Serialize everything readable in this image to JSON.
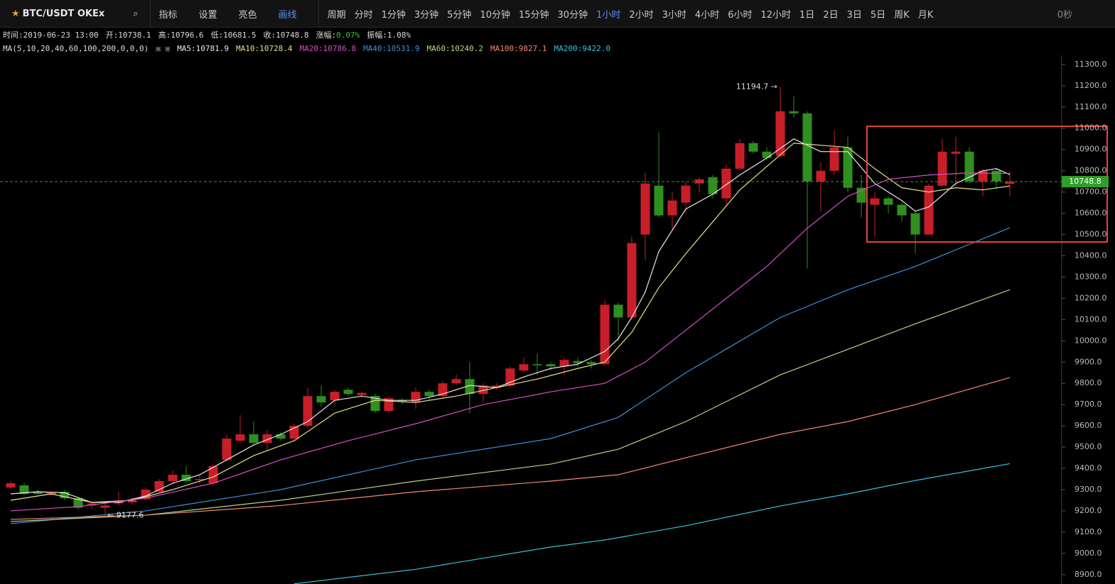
{
  "toolbar": {
    "symbol": "BTC/USDT OKEx",
    "tools": [
      "指标",
      "设置",
      "亮色",
      "画线"
    ],
    "period_label": "周期",
    "periods": [
      "分时",
      "1分钟",
      "3分钟",
      "5分钟",
      "10分钟",
      "15分钟",
      "30分钟",
      "1小时",
      "2小时",
      "3小时",
      "4小时",
      "6小时",
      "12小时",
      "1日",
      "2日",
      "3日",
      "5日",
      "周K",
      "月K"
    ],
    "active_period": 7,
    "active_color": "#5b8ff9",
    "timer": "0秒"
  },
  "info": {
    "fields": [
      "时间:2019-06-23 13:00",
      "开:10738.1",
      "高:10796.6",
      "低:10681.5",
      "收:10748.8"
    ],
    "change_label": "涨幅:",
    "change": "0.07%",
    "change_color": "#3fbf3f",
    "amplitude": "振幅:1.08%",
    "ma_params": "MA(5,10,20,40,60,100,200,0,0,0)"
  },
  "chart_data": {
    "type": "candlestick",
    "up_color": "#c81e2a",
    "down_color": "#2f8f1f",
    "open": [
      9310,
      9320,
      9290,
      9275,
      9290,
      9260,
      9225,
      9215,
      9235,
      9240,
      9255,
      9290,
      9340,
      9370,
      9345,
      9330,
      9440,
      9530,
      9560,
      9520,
      9560,
      9540,
      9600,
      9740,
      9720,
      9770,
      9745,
      9740,
      9670,
      9720,
      9710,
      9760,
      9740,
      9800,
      9820,
      9750,
      9780,
      9790,
      9860,
      9890,
      9890,
      9880,
      9905,
      9900,
      9890,
      10170,
      10110,
      10500,
      10730,
      10590,
      10650,
      10740,
      10770,
      10670,
      10810,
      10930,
      10890,
      10870,
      11080,
      11070,
      10750,
      10800,
      10910,
      10720,
      10640,
      10670,
      10640,
      10600,
      10500,
      10730,
      10880,
      10890,
      10750,
      10800,
      10738.1
    ],
    "high": [
      9340,
      9330,
      9300,
      9290,
      9300,
      9265,
      9240,
      9235,
      9290,
      9260,
      9310,
      9350,
      9390,
      9410,
      9370,
      9420,
      9560,
      9650,
      9620,
      9580,
      9570,
      9610,
      9780,
      9790,
      9770,
      9780,
      9760,
      9750,
      9740,
      9730,
      9780,
      9770,
      9810,
      9840,
      9900,
      9800,
      9800,
      9880,
      9920,
      9940,
      9900,
      9920,
      9920,
      9910,
      10190,
      10180,
      10490,
      10790,
      10980,
      10700,
      10750,
      10770,
      10780,
      10830,
      10950,
      10940,
      10910,
      11194.7,
      11150,
      11080,
      10840,
      10990,
      10960,
      10780,
      10700,
      10680,
      10650,
      10610,
      10740,
      10950,
      10960,
      10910,
      10810,
      10810,
      10796.6
    ],
    "low": [
      9300,
      9275,
      9275,
      9270,
      9250,
      9205,
      9210,
      9177.6,
      9225,
      9230,
      9250,
      9285,
      9330,
      9330,
      9330,
      9320,
      9430,
      9520,
      9510,
      9480,
      9530,
      9530,
      9590,
      9690,
      9700,
      9740,
      9730,
      9660,
      9660,
      9700,
      9680,
      9720,
      9730,
      9790,
      9660,
      9710,
      9770,
      9780,
      9850,
      9840,
      9860,
      9840,
      9880,
      9870,
      9880,
      10000,
      10100,
      10380,
      10580,
      10520,
      10600,
      10700,
      10670,
      10640,
      10800,
      10880,
      10850,
      10860,
      11050,
      10340,
      10610,
      10780,
      10700,
      10580,
      10490,
      10600,
      10560,
      10410,
      10500,
      10720,
      10730,
      10740,
      10680,
      10720,
      10681.5
    ],
    "close": [
      9330,
      9280,
      9280,
      9285,
      9260,
      9215,
      9235,
      9225,
      9245,
      9250,
      9300,
      9340,
      9370,
      9340,
      9350,
      9410,
      9540,
      9560,
      9520,
      9560,
      9540,
      9600,
      9740,
      9710,
      9760,
      9750,
      9755,
      9670,
      9730,
      9715,
      9760,
      9740,
      9800,
      9820,
      9750,
      9790,
      9790,
      9870,
      9890,
      9885,
      9880,
      9910,
      9895,
      9890,
      10170,
      10110,
      10460,
      10740,
      10590,
      10660,
      10730,
      10760,
      10690,
      10810,
      10930,
      10890,
      10860,
      11080,
      11070,
      10750,
      10800,
      10910,
      10720,
      10650,
      10670,
      10640,
      10590,
      10500,
      10730,
      10890,
      10890,
      10750,
      10800,
      10750,
      10748.8
    ],
    "ma_series": [
      {
        "legend_label": "MA5:10781.9",
        "color": "#e8e8e8",
        "x": [
          0,
          2,
          4,
          6,
          8,
          10,
          12,
          14,
          16,
          18,
          20,
          22,
          24,
          26,
          28,
          30,
          32,
          34,
          36,
          38,
          40,
          42,
          44,
          45,
          46,
          47,
          48,
          50,
          52,
          54,
          56,
          58,
          60,
          62,
          64,
          66,
          67,
          68,
          70,
          72,
          73,
          74
        ],
        "values": [
          9280,
          9290,
          9285,
          9240,
          9240,
          9270,
          9330,
          9370,
          9440,
          9510,
          9560,
          9620,
          9720,
          9740,
          9720,
          9720,
          9750,
          9790,
          9780,
          9830,
          9870,
          9890,
          9950,
          10010,
          10110,
          10230,
          10420,
          10620,
          10690,
          10780,
          10860,
          10950,
          10890,
          10890,
          10740,
          10660,
          10610,
          10630,
          10740,
          10800,
          10810,
          10781.9
        ]
      },
      {
        "legend_label": "MA10:10728.4",
        "color": "#e6e08a",
        "x": [
          0,
          3,
          6,
          9,
          12,
          15,
          18,
          21,
          24,
          27,
          30,
          33,
          36,
          39,
          42,
          44,
          46,
          48,
          50,
          52,
          54,
          56,
          58,
          60,
          62,
          64,
          66,
          68,
          70,
          72,
          74
        ],
        "values": [
          9250,
          9280,
          9240,
          9250,
          9300,
          9360,
          9460,
          9530,
          9660,
          9720,
          9710,
          9740,
          9780,
          9820,
          9870,
          9900,
          10040,
          10250,
          10410,
          10560,
          10710,
          10820,
          10930,
          10920,
          10910,
          10810,
          10720,
          10700,
          10720,
          10710,
          10728.4
        ]
      },
      {
        "legend_label": "MA20:10786.8",
        "color": "#d64fc8",
        "x": [
          0,
          5,
          10,
          15,
          20,
          25,
          30,
          35,
          40,
          44,
          47,
          50,
          53,
          56,
          59,
          62,
          65,
          68,
          71,
          74
        ],
        "values": [
          9200,
          9220,
          9260,
          9330,
          9440,
          9530,
          9610,
          9700,
          9760,
          9800,
          9900,
          10050,
          10200,
          10350,
          10530,
          10680,
          10760,
          10780,
          10790,
          10786.8
        ]
      },
      {
        "legend_label": "MA40:10531.9",
        "color": "#3f8fd8",
        "x": [
          0,
          10,
          20,
          30,
          40,
          45,
          50,
          57,
          62,
          67,
          74
        ],
        "values": [
          9140,
          9200,
          9300,
          9440,
          9540,
          9640,
          9850,
          10110,
          10240,
          10350,
          10531.9
        ]
      },
      {
        "legend_label": "MA60:10240.2",
        "color": "#b8d68a",
        "x": [
          0,
          10,
          20,
          30,
          40,
          45,
          50,
          57,
          62,
          67,
          74
        ],
        "values": [
          9150,
          9180,
          9250,
          9340,
          9420,
          9490,
          9620,
          9840,
          9960,
          10080,
          10240.2
        ]
      },
      {
        "legend_label": "MA100:9827.1",
        "color": "#f08a70",
        "x": [
          0,
          10,
          20,
          30,
          40,
          45,
          50,
          57,
          62,
          67,
          74
        ],
        "values": [
          9160,
          9180,
          9225,
          9290,
          9340,
          9370,
          9450,
          9560,
          9620,
          9700,
          9827.1
        ]
      },
      {
        "legend_label": "MA200:9422.0",
        "color": "#35c3d8",
        "x": [
          21,
          30,
          40,
          44,
          50,
          57,
          62,
          67,
          74
        ],
        "values": [
          8857,
          8925,
          9030,
          9063,
          9130,
          9223,
          9280,
          9343,
          9422
        ]
      }
    ],
    "ylim": [
      8856,
      11343
    ],
    "yticks": [
      {
        "value": 8900,
        "label": "8900.0"
      },
      {
        "value": 9000,
        "label": "9000.0"
      },
      {
        "value": 9100,
        "label": "9100.0"
      },
      {
        "value": 9200,
        "label": "9200.0"
      },
      {
        "value": 9300,
        "label": "9300.0"
      },
      {
        "value": 9400,
        "label": "9400.0"
      },
      {
        "value": 9500,
        "label": "9500.0"
      },
      {
        "value": 9600,
        "label": "9600.0"
      },
      {
        "value": 9700,
        "label": "9700.0"
      },
      {
        "value": 9800,
        "label": "9800.0"
      },
      {
        "value": 9900,
        "label": "9900.0"
      },
      {
        "value": 10000,
        "label": "10000.0"
      },
      {
        "value": 10100,
        "label": "10100.0"
      },
      {
        "value": 10200,
        "label": "10200.0"
      },
      {
        "value": 10300,
        "label": "10300.0"
      },
      {
        "value": 10400,
        "label": "10400.0"
      },
      {
        "value": 10500,
        "label": "10500.0"
      },
      {
        "value": 10600,
        "label": "10600.0"
      },
      {
        "value": 10700,
        "label": "10700.0"
      },
      {
        "value": 10800,
        "label": "10800.0"
      },
      {
        "value": 10900,
        "label": "10900.0"
      },
      {
        "value": 11000,
        "label": "11000.0"
      },
      {
        "value": 11100,
        "label": "11100.0"
      },
      {
        "value": 11200,
        "label": "11200.0"
      },
      {
        "value": 11300,
        "label": "11300.0"
      }
    ],
    "last_label": "10748.8",
    "last_color": "#2f9e2a",
    "high_label": "11194.7 →",
    "high_index": 57,
    "low_label": "← 9177.6",
    "low_index": 7
  }
}
